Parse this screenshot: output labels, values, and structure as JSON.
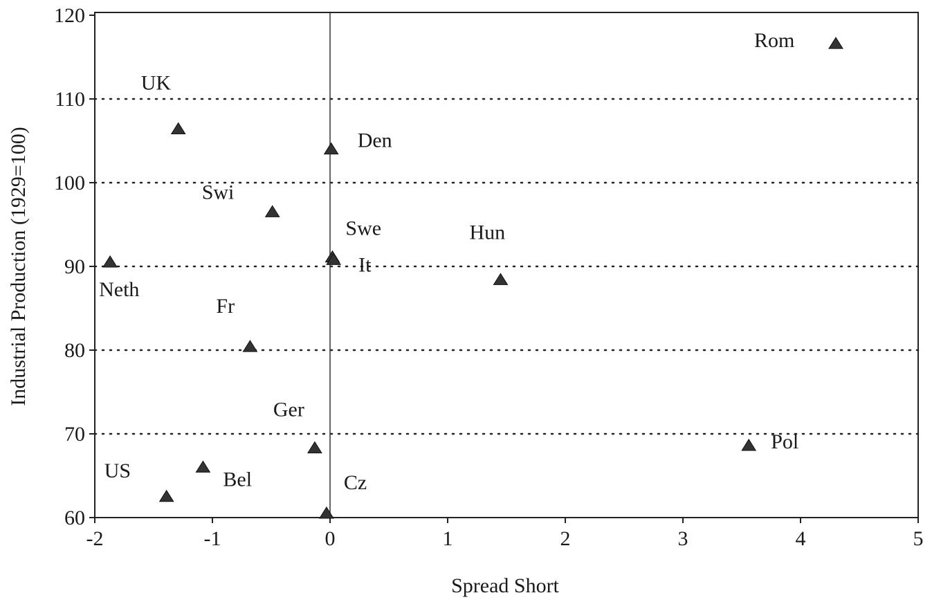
{
  "chart_data": {
    "type": "scatter",
    "xlabel": "Spread Short",
    "ylabel": "Industrial Production (1929=100)",
    "labels": [
      "Rom",
      "UK",
      "Den",
      "Swi",
      "Swe",
      "Neth",
      "It",
      "Hun",
      "Fr",
      "Ger",
      "Pol",
      "Bel",
      "US",
      "Cz"
    ],
    "x": [
      4.3,
      -1.29,
      0.01,
      -0.49,
      0.02,
      -1.87,
      0.03,
      1.45,
      -0.68,
      -0.13,
      3.56,
      -1.08,
      -1.39,
      -0.03
    ],
    "values": [
      116.6,
      106.4,
      104.0,
      96.5,
      91.1,
      90.5,
      90.8,
      88.4,
      80.4,
      68.3,
      68.6,
      66.0,
      62.5,
      60.5
    ],
    "color": "#333333",
    "xlim": [
      -2,
      5
    ],
    "xticks": [
      -2,
      -1,
      0,
      1,
      2,
      3,
      4,
      5
    ],
    "ylim": [
      60,
      120
    ],
    "yticks": [
      60,
      70,
      80,
      90,
      100,
      110,
      120
    ],
    "grid": true
  }
}
